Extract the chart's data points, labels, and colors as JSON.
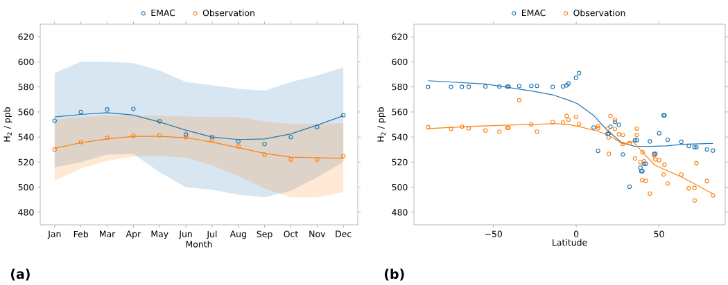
{
  "chart_data": [
    {
      "type": "scatter",
      "xlabel": "Month",
      "ylabel": "H$_{2}$ / ppb",
      "categories": [
        "Jan",
        "Feb",
        "Mar",
        "Apr",
        "May",
        "Jun",
        "Jul",
        "Aug",
        "Sep",
        "Oct",
        "Nov",
        "Dec"
      ],
      "ylim": [
        470,
        630
      ],
      "yticks": [
        480,
        500,
        520,
        540,
        560,
        580,
        600,
        620
      ],
      "marker": "circle",
      "legend": "top",
      "annotations": [
        "(a)"
      ],
      "series": [
        {
          "name": "EMAC",
          "color": "#1f77b4",
          "values": [
            553,
            560,
            562,
            562.5,
            552.5,
            542,
            540,
            536.5,
            534.5,
            540,
            548,
            557.5
          ]
        },
        {
          "name": "Observation",
          "color": "#ff7f0e",
          "values": [
            530,
            536,
            539.5,
            541,
            541.5,
            540,
            537.5,
            532.5,
            526,
            522,
            522,
            525
          ]
        },
        {
          "type": "line",
          "marker": "none",
          "color": "#1f77b4",
          "values": [
            556,
            558,
            559.5,
            557.5,
            552,
            545.5,
            540,
            538,
            538.5,
            542.5,
            549.5,
            557
          ],
          "lower": [
            516,
            520,
            526,
            526.5,
            512,
            500,
            498,
            494,
            492,
            497,
            508,
            520
          ],
          "upper": [
            591,
            600,
            600,
            599,
            593,
            584,
            581.3,
            578.5,
            577,
            584,
            589,
            595.5
          ]
        },
        {
          "type": "line",
          "marker": "none",
          "color": "#ff7f0e",
          "values": [
            531,
            535.5,
            538.5,
            540.5,
            540.5,
            539.5,
            536,
            531.5,
            527,
            524,
            523.5,
            523
          ],
          "lower": [
            505,
            515,
            521,
            524.5,
            525,
            523.5,
            517.5,
            509,
            499,
            492,
            492,
            496
          ],
          "upper": [
            554,
            556,
            557,
            557,
            557,
            556.5,
            556,
            556,
            552.5,
            550.5,
            550.5,
            551
          ]
        }
      ]
    },
    {
      "type": "scatter",
      "xlabel": "Latitude",
      "ylabel": "H$_{2}$ / ppb",
      "xlim": [
        -98,
        90
      ],
      "xticks": [
        {
          "value": -50,
          "label": "−50"
        },
        0,
        50
      ],
      "ylim": [
        470,
        630
      ],
      "yticks": [
        480,
        500,
        520,
        540,
        560,
        580,
        600,
        620
      ],
      "marker": "circle",
      "legend": "top",
      "annotations": [
        "(b)"
      ],
      "series": [
        {
          "name": "EMAC",
          "color": "#1f77b4",
          "x": [
            -89.5,
            -75.6,
            -69,
            -64.9,
            -54.8,
            -46.4,
            -41.6,
            -40.9,
            -34.4,
            -27.1,
            -23.7,
            -14.2,
            -8,
            -5.8,
            -4.7,
            -0.1,
            1.7,
            10.5,
            13.2,
            19,
            19.6,
            20.7,
            23.4,
            25.8,
            28.2,
            32.2,
            35.5,
            36.6,
            38.8,
            39.3,
            40,
            41,
            42,
            44.5,
            47.1,
            47.8,
            50.1,
            52.8,
            53.3,
            55.2,
            63.5,
            68,
            71.4,
            72.6,
            78.9,
            82.6
          ],
          "values": [
            580,
            580,
            580.1,
            580.1,
            580.3,
            580.3,
            580.3,
            580.3,
            580.7,
            580.8,
            580.8,
            580,
            580.3,
            581.2,
            582.7,
            587.3,
            591,
            547.6,
            529,
            542.4,
            542.8,
            548.3,
            552,
            549.8,
            526.1,
            500.4,
            537.5,
            537.5,
            515.6,
            512.8,
            512.8,
            518.7,
            518.7,
            536.5,
            526.6,
            526.6,
            543,
            557.3,
            557.3,
            537.8,
            536.2,
            532.9,
            531.9,
            531.9,
            530.1,
            529.2
          ]
        },
        {
          "name": "Observation",
          "color": "#ff7f0e",
          "x": [
            -89.5,
            -75.6,
            -69,
            -64.9,
            -54.8,
            -46.4,
            -41.6,
            -40.9,
            -34.4,
            -27.1,
            -23.7,
            -14.2,
            -8,
            -5.8,
            -4.7,
            -0.1,
            1.7,
            13.2,
            13.2,
            19,
            19.6,
            19.7,
            20.7,
            23.4,
            23.4,
            25.8,
            28.2,
            28.2,
            32.2,
            35.5,
            36.6,
            36.6,
            38.8,
            39.8,
            40.1,
            41,
            42,
            44.5,
            47.1,
            47.8,
            50.1,
            52.8,
            53.3,
            55.2,
            63.5,
            68,
            71.4,
            71.5,
            72.6,
            78.9,
            82.6
          ],
          "values": [
            547.8,
            546.5,
            548.3,
            547,
            545.2,
            544.3,
            547.4,
            547.4,
            569.3,
            550.1,
            544.3,
            552,
            551.6,
            556.8,
            553.8,
            556,
            550.5,
            548.7,
            547.1,
            546.8,
            539.7,
            526.6,
            556.8,
            553.8,
            546.5,
            542.2,
            541.7,
            534.5,
            535.1,
            522.9,
            546.8,
            541.7,
            520,
            505.7,
            527.9,
            520.7,
            505.1,
            494.9,
            525.3,
            522.2,
            521.5,
            510.1,
            518,
            502.9,
            510.1,
            499.1,
            499.4,
            489.4,
            519.1,
            505,
            493.4
          ]
        },
        {
          "type": "line",
          "marker": "none",
          "color": "#1f77b4",
          "x": [
            -89.5,
            -54.8,
            -27.1,
            -14.2,
            -4.8,
            0.7,
            10.3,
            18.6,
            27.5,
            35.1,
            44.8,
            54.4,
            64,
            82.6
          ],
          "values": [
            584.9,
            582.3,
            576.8,
            573.7,
            569.5,
            566.7,
            557.5,
            545.6,
            535.5,
            532.7,
            532.5,
            533,
            534.2,
            534.9
          ]
        },
        {
          "type": "line",
          "marker": "none",
          "color": "#ff7f0e",
          "x": [
            -89.5,
            -59.9,
            -27.1,
            -13.1,
            -4.8,
            2,
            13.1,
            20,
            28.2,
            34.4,
            40.6,
            47.5,
            57.2,
            64,
            72.3,
            82.6
          ],
          "values": [
            546.8,
            548.7,
            550.1,
            550.7,
            550.1,
            548.3,
            544.6,
            541,
            534.5,
            536.3,
            527.2,
            517.6,
            511.9,
            507.9,
            502,
            494.7
          ]
        }
      ]
    }
  ]
}
